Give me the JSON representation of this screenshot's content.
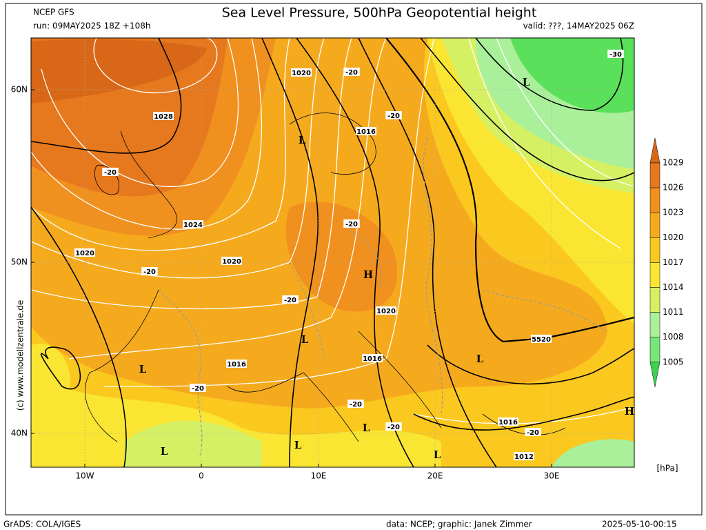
{
  "header": {
    "model": "NCEP GFS",
    "run": "run: 09MAY2025 18Z +108h",
    "title": "Sea Level Pressure, 500hPa Geopotential height",
    "valid": "valid: ???, 14MAY2025 06Z"
  },
  "axes": {
    "lat_labels": [
      "60N",
      "50N",
      "40N"
    ],
    "lon_labels": [
      "10W",
      "0",
      "10E",
      "20E",
      "30E"
    ]
  },
  "colorbar": {
    "labels": [
      "1029",
      "1026",
      "1023",
      "1020",
      "1017",
      "1014",
      "1011",
      "1008",
      "1005"
    ],
    "unit": "[hPa]",
    "colors": [
      "#d86818",
      "#e6781e",
      "#f0901e",
      "#f5aa1e",
      "#fac81e",
      "#fae632",
      "#d6f064",
      "#aaf09a",
      "#78e678",
      "#3cd250"
    ]
  },
  "contour_labels": [
    "1028",
    "1024",
    "1020",
    "1020",
    "1020",
    "1016",
    "1016",
    "1016",
    "1020",
    "1016",
    "1012",
    "5520",
    "-30",
    "-20",
    "-20",
    "-20",
    "-20",
    "-20",
    "-20",
    "-20",
    "-20",
    "-20",
    "-20"
  ],
  "pressure_centers": [
    "L",
    "L",
    "L",
    "L",
    "L",
    "L",
    "L",
    "L",
    "L",
    "H",
    "H"
  ],
  "footer": {
    "left": "GrADS: COLA/IGES",
    "credit": "data: NCEP; graphic: Janek Zimmer",
    "timestamp": "2025-05-10-00:15",
    "side": "(c) www.modellzentrale.de"
  }
}
